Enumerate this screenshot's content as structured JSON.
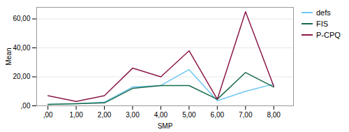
{
  "chart_data": {
    "type": "line",
    "xlabel": "SMP",
    "ylabel": "Mean",
    "x": [
      0,
      1,
      2,
      3,
      4,
      5,
      6,
      7,
      8
    ],
    "series": [
      {
        "name": "defs",
        "color": "#6EC6F0",
        "values": [
          1.0,
          1.5,
          2.5,
          13.0,
          14.0,
          25.0,
          3.5,
          10.0,
          15.0
        ]
      },
      {
        "name": "FIS",
        "color": "#1A6B4A",
        "values": [
          1.0,
          1.5,
          2.0,
          12.0,
          14.0,
          14.0,
          4.5,
          23.0,
          13.0
        ]
      },
      {
        "name": "P-CPQ",
        "color": "#8B1A4A",
        "values": [
          7.0,
          3.0,
          7.0,
          26.0,
          20.0,
          38.0,
          4.5,
          65.0,
          13.5
        ]
      }
    ],
    "xlim": [
      -0.4,
      8.7
    ],
    "xticks": [
      {
        "value": 0,
        "label": ",00"
      },
      {
        "value": 1,
        "label": "1,00"
      },
      {
        "value": 2,
        "label": "2,00"
      },
      {
        "value": 3,
        "label": "3,00"
      },
      {
        "value": 4,
        "label": "4,00"
      },
      {
        "value": 5,
        "label": "5,00"
      },
      {
        "value": 6,
        "label": "6,00"
      },
      {
        "value": 7,
        "label": "7,00"
      },
      {
        "value": 8,
        "label": "8,00"
      }
    ],
    "ylim": [
      0,
      68
    ],
    "yticks": [
      {
        "value": 0,
        "label": ",00"
      },
      {
        "value": 20,
        "label": "20,00"
      },
      {
        "value": 40,
        "label": "40,00"
      },
      {
        "value": 60,
        "label": "60,00"
      }
    ],
    "grid": "y",
    "legend": "upper right"
  }
}
